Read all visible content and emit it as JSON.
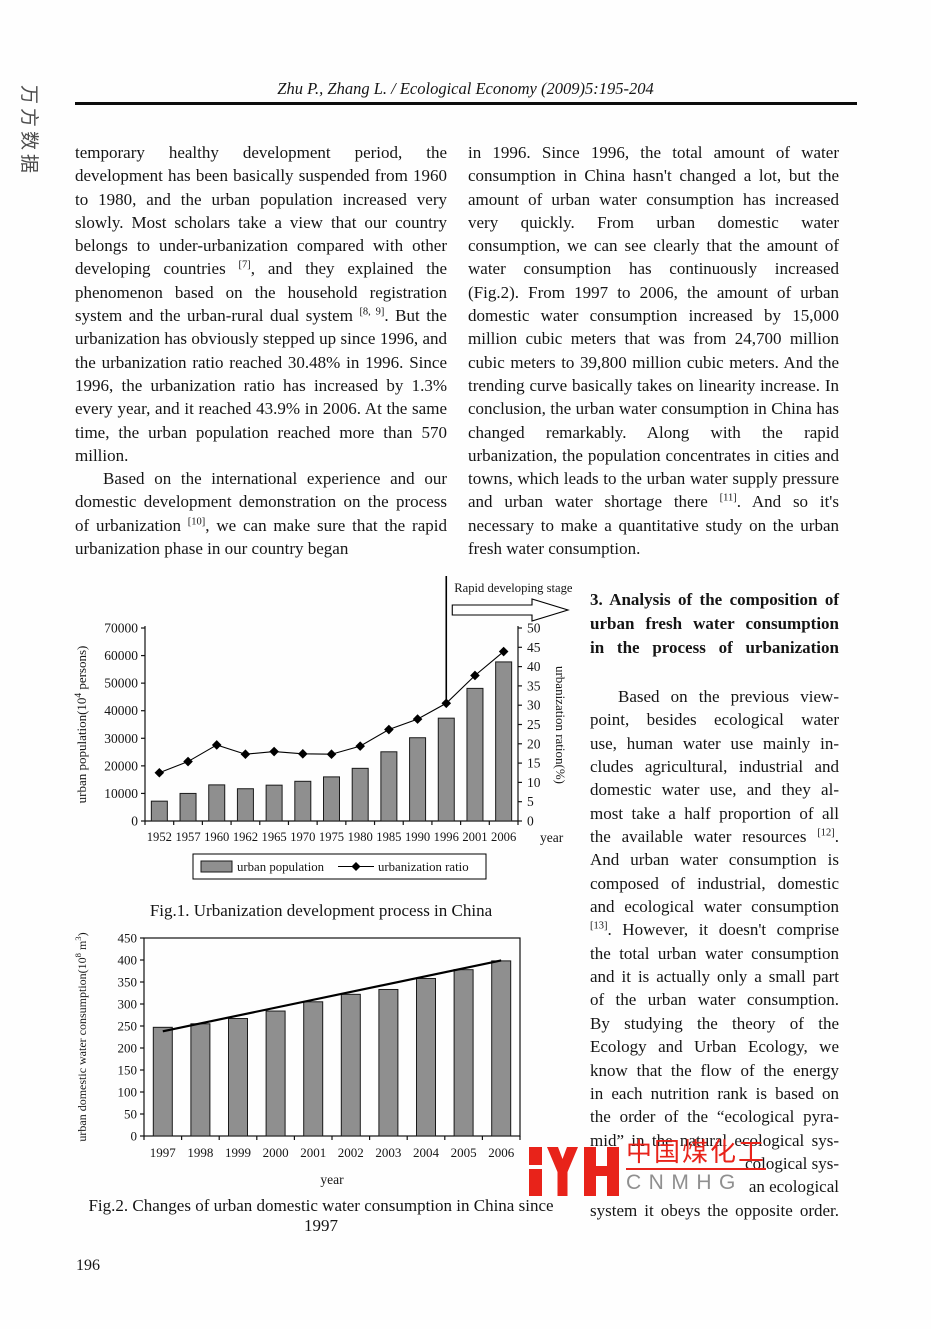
{
  "page": {
    "number": "196",
    "side_watermark": "万方数据"
  },
  "header": {
    "citation": "Zhu P., Zhang L. / Ecological Economy (2009)5:195-204"
  },
  "left_column": {
    "paragraphs": [
      {
        "indent": false,
        "segments": [
          "temporary healthy development period, the development has been basically suspended from 1960 to 1980, and the urban population increased very slowly. Most scholars take a view that our country belongs to under-urbanization compared with other developing countries ",
          {
            "sup": "[7]"
          },
          ", and they explained the phenomenon based on the household registration system and the urban-rural dual system ",
          {
            "sup": "[8, 9]"
          },
          ". But the urbanization has obviously stepped up since 1996, and the urbanization ratio reached 30.48% in 1996. Since 1996, the urbanization ratio has increased by 1.3% every year, and it reached 43.9% in 2006. At the same time, the urban population reached more than 570 million."
        ]
      },
      {
        "indent": true,
        "segments": [
          "Based on the international experience and our domestic development demonstration on the process of urbanization ",
          {
            "sup": "[10]"
          },
          ", we can make sure that the rapid urbanization phase in our country began"
        ]
      }
    ]
  },
  "right_column": {
    "paragraphs": [
      {
        "indent": false,
        "segments": [
          "in 1996. Since 1996, the total amount of water consumption in China hasn't changed a lot, but the amount of urban water consumption has increased very quickly. From urban domestic water consumption, we can see clearly that the amount of water consumption has continuously increased (Fig.2). From 1997 to 2006, the amount of urban domestic water consumption increased by 15,000 million cubic meters that was from 24,700 million cubic meters to 39,800 million cubic meters. And the trending curve basically takes on linearity increase. In conclusion, the urban water consumption in China has changed remarkably. Along with the rapid urbanization, the population concentrates in cities and towns, which leads to the urban water supply pressure and urban water shortage there ",
          {
            "sup": "[11]"
          },
          ". And so it's necessary to make a quantitative study on the urban fresh water consumption."
        ]
      }
    ]
  },
  "section3": {
    "heading_lines": [
      "3. Analysis of the composition of",
      "urban fresh water consumption",
      "in the process of urbanization"
    ],
    "lines": [
      {
        "indent": true,
        "segments": [
          "Based on the previous view-"
        ]
      },
      "point, besides ecological water",
      "use, human water use mainly in-",
      "cludes agricultural, industrial and",
      "domestic water use, and they al-",
      "most take a half proportion of all",
      {
        "segments": [
          "the available water resources ",
          {
            "sup": "[12]"
          },
          "."
        ]
      },
      "And urban water consumption is",
      "composed of industrial, domestic",
      "and ecological water consumption",
      {
        "segments": [
          {
            "sup": "[13]"
          },
          ". However, it doesn't comprise"
        ]
      },
      "the total urban water consumption",
      "and it is actually only a small part",
      "of the urban water consumption.",
      "By studying the theory of the",
      "Ecology and Urban Ecology, we",
      "know that the flow of the energy",
      "in each nutrition rank is based on",
      "the order of the “ecological pyra-",
      "mid” in the natural ecological sys-",
      {
        "align": "right",
        "segments": [
          "cological sys-"
        ]
      },
      {
        "align": "right",
        "segments": [
          "an ecological"
        ]
      },
      "system it obeys the opposite order."
    ]
  },
  "logo": {
    "zh": "中国煤化工",
    "latin": "CNMHG",
    "red": "#e8231a",
    "gray": "#8f8f8f"
  },
  "chart_data": [
    {
      "id": "fig1",
      "type": "bar",
      "title": "Fig.1. Urbanization development process in China",
      "categories": [
        "1952",
        "1957",
        "1960",
        "1962",
        "1965",
        "1970",
        "1975",
        "1980",
        "1985",
        "1990",
        "1996",
        "2001",
        "2006"
      ],
      "series": [
        {
          "name": "urban population",
          "type": "bar",
          "axis": "left",
          "values": [
            7200,
            10000,
            13100,
            11700,
            13000,
            14400,
            16000,
            19100,
            25100,
            30200,
            37300,
            48100,
            57700
          ]
        },
        {
          "name": "urbanization ratio",
          "type": "line",
          "axis": "right",
          "values": [
            12.5,
            15.4,
            19.7,
            17.3,
            18.0,
            17.4,
            17.3,
            19.4,
            23.7,
            26.4,
            30.5,
            37.7,
            43.9
          ]
        }
      ],
      "xlabel": "year",
      "ylabel": "urban population(10^{4} persons)",
      "y2label": "urbanization ration(%)",
      "ylim": [
        0,
        70000
      ],
      "ystep": 10000,
      "y2lim": [
        0,
        50
      ],
      "y2step": 5,
      "grid": false,
      "legend_position": "bottom",
      "legend": [
        "urban population",
        "urbanization ratio"
      ],
      "annotation": {
        "text": "Rapid developing stage",
        "at_category": "1996"
      },
      "bar_color": "#8f8f8f",
      "line_color": "#000000"
    },
    {
      "id": "fig2",
      "type": "bar",
      "title": "Fig.2. Changes of urban domestic water consumption in China since 1997",
      "categories": [
        "1997",
        "1998",
        "1999",
        "2000",
        "2001",
        "2002",
        "2003",
        "2004",
        "2005",
        "2006"
      ],
      "values": [
        247,
        255,
        267,
        284,
        305,
        322,
        333,
        358,
        378,
        398
      ],
      "trend_line": {
        "start": 238,
        "end": 399
      },
      "xlabel": "year",
      "ylabel": "urban domestic water consumption(10^{8} m^{3})",
      "ylim": [
        0,
        450
      ],
      "ystep": 50,
      "grid": false,
      "bar_color": "#8f8f8f",
      "line_color": "#000000"
    }
  ]
}
